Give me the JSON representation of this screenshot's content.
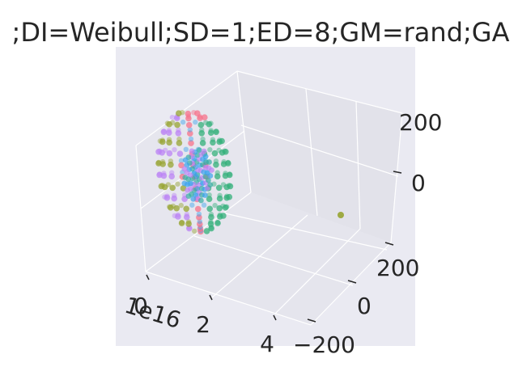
{
  "chart_data": {
    "type": "scatter",
    "title": ";DI=Weibull;SD=1;ED=8;GM=rand;GA",
    "x_offset_label": "1e16",
    "x_ticks": [
      "0",
      "2",
      "4"
    ],
    "y_ticks": [
      "200",
      "0",
      "−200"
    ],
    "z_ticks": [
      "200",
      "0"
    ],
    "grid": true,
    "background": "#eaeaf2",
    "pane_color": "#e5e5ed",
    "series": [
      {
        "color": "#f77189"
      },
      {
        "color": "#33b07a"
      },
      {
        "color": "#97a431"
      },
      {
        "color": "#bb83f4"
      },
      {
        "color": "#36ada4"
      },
      {
        "color": "#3ba3ec"
      }
    ],
    "outlier": {
      "x": 4.6,
      "y": 0,
      "z": -80,
      "color": "#97a431"
    }
  }
}
